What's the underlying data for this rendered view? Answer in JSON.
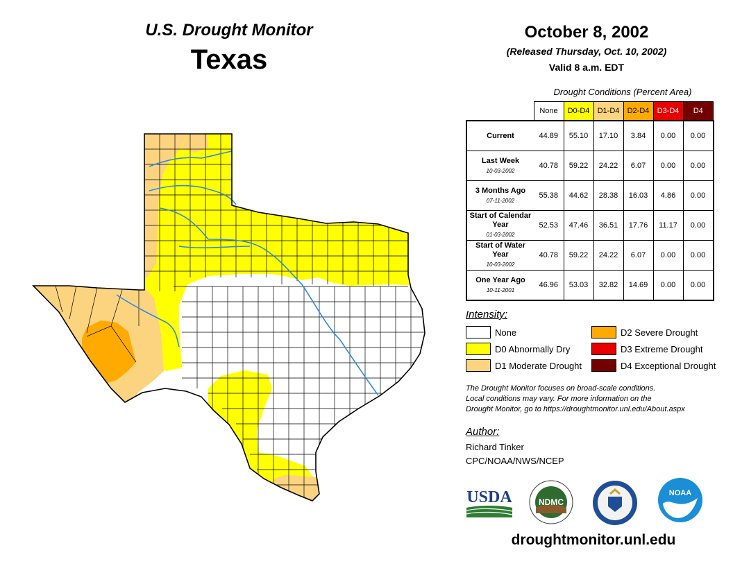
{
  "header": {
    "subtitle": "U.S. Drought Monitor",
    "state": "Texas",
    "date": "October 8, 2002",
    "released": "(Released Thursday, Oct. 10, 2002)",
    "valid": "Valid 8 a.m. EDT"
  },
  "table": {
    "title": "Drought Conditions (Percent Area)",
    "columns": [
      "None",
      "D0-D4",
      "D1-D4",
      "D2-D4",
      "D3-D4",
      "D4"
    ],
    "rows": [
      {
        "label": "Current",
        "sub": "",
        "values": [
          "44.89",
          "55.10",
          "17.10",
          "3.84",
          "0.00",
          "0.00"
        ]
      },
      {
        "label": "Last Week",
        "sub": "10-03-2002",
        "values": [
          "40.78",
          "59.22",
          "24.22",
          "6.07",
          "0.00",
          "0.00"
        ]
      },
      {
        "label": "3 Months Ago",
        "sub": "07-11-2002",
        "values": [
          "55.38",
          "44.62",
          "28.38",
          "16.03",
          "4.86",
          "0.00"
        ]
      },
      {
        "label": "Start of Calendar Year",
        "sub": "01-03-2002",
        "values": [
          "52.53",
          "47.46",
          "36.51",
          "17.76",
          "11.17",
          "0.00"
        ]
      },
      {
        "label": "Start of Water Year",
        "sub": "10-03-2002",
        "values": [
          "40.78",
          "59.22",
          "24.22",
          "6.07",
          "0.00",
          "0.00"
        ]
      },
      {
        "label": "One Year Ago",
        "sub": "10-11-2001",
        "values": [
          "46.96",
          "53.03",
          "32.82",
          "14.69",
          "0.00",
          "0.00"
        ]
      }
    ]
  },
  "legend": {
    "title": "Intensity:",
    "items": [
      {
        "label": "None",
        "color": "#ffffff"
      },
      {
        "label": "D0 Abnormally Dry",
        "color": "#ffff00"
      },
      {
        "label": "D1 Moderate Drought",
        "color": "#fcd37f"
      },
      {
        "label": "D2 Severe Drought",
        "color": "#ffaa00"
      },
      {
        "label": "D3 Extreme Drought",
        "color": "#e60000"
      },
      {
        "label": "D4 Exceptional Drought",
        "color": "#730000"
      }
    ]
  },
  "note": {
    "line1": "The Drought Monitor focuses on broad-scale conditions.",
    "line2": "Local conditions may vary. For more information on the",
    "line3": "Drought Monitor, go to https://droughtmonitor.unl.edu/About.aspx"
  },
  "author": {
    "title": "Author:",
    "name": "Richard Tinker",
    "org": "CPC/NOAA/NWS/NCEP"
  },
  "logos": {
    "usda": "USDA",
    "ndmc": "NDMC",
    "noaa": "NOAA"
  },
  "footer": {
    "website": "droughtmonitor.unl.edu"
  },
  "colors": {
    "none": "#ffffff",
    "d0": "#ffff00",
    "d1": "#fcd37f",
    "d2": "#ffaa00",
    "d3": "#e60000",
    "d4": "#730000",
    "river": "#2b8ce6"
  }
}
